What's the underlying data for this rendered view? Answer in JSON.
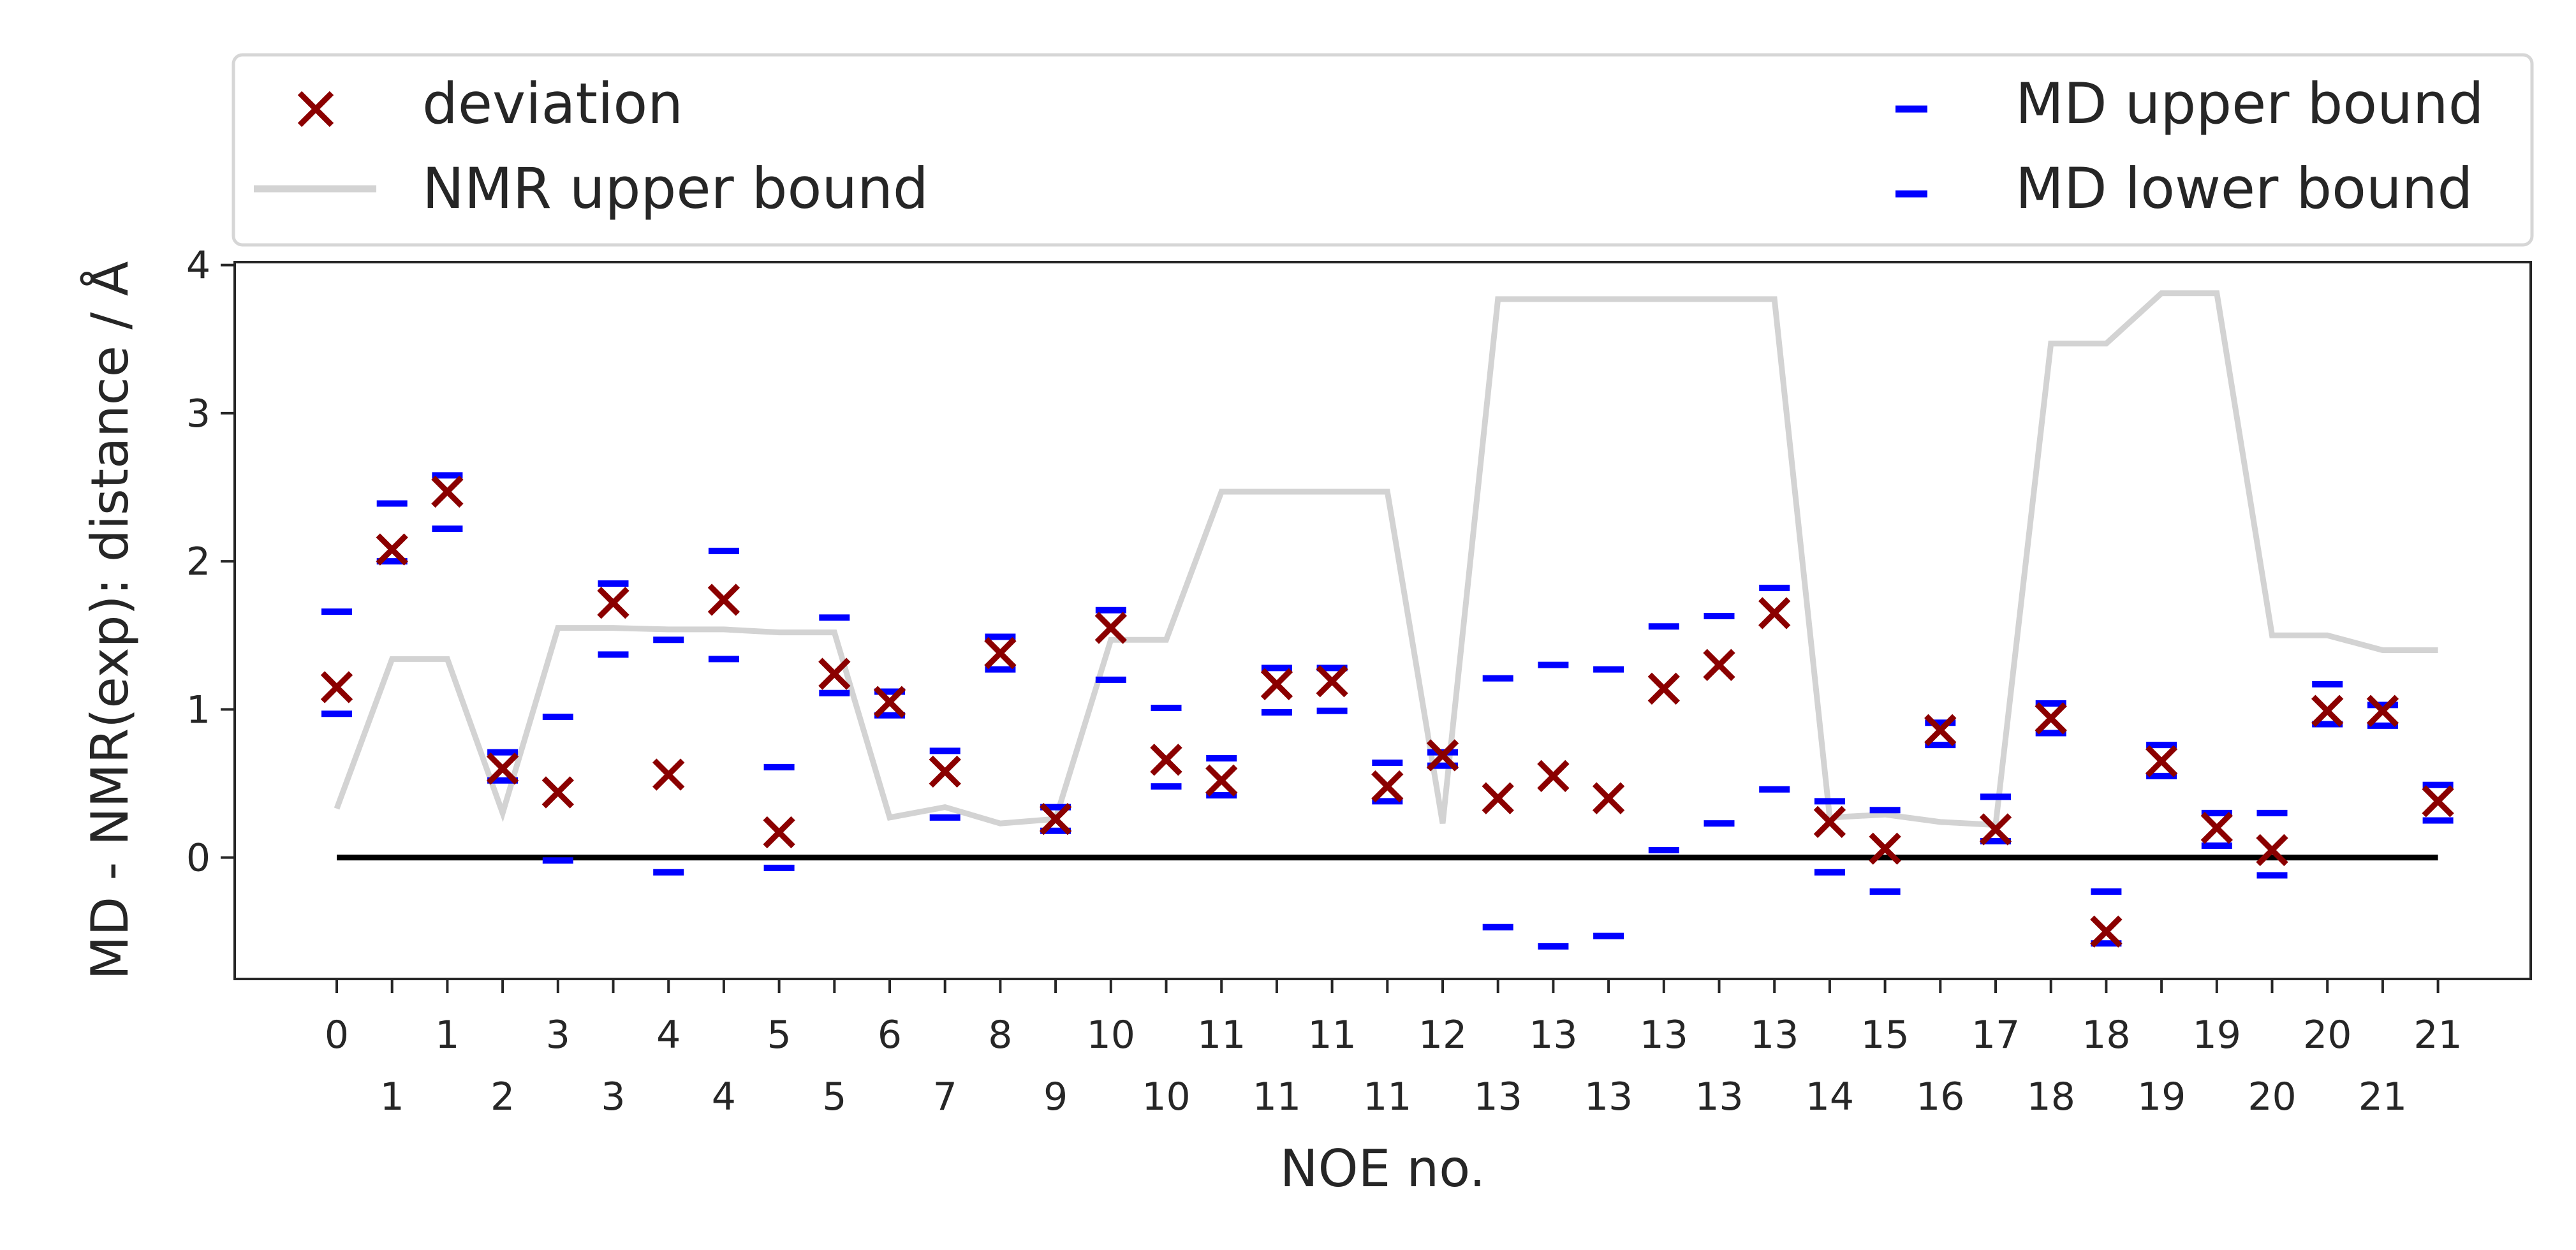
{
  "chart_data": {
    "type": "scatter",
    "xlabel": "NOE no.",
    "ylabel": "MD - NMR(exp): distance / Å",
    "ylim": [
      -0.82,
      4.02
    ],
    "yticks": [
      0,
      1,
      2,
      3,
      4
    ],
    "xtick_labels_top": [
      "0",
      "1",
      "3",
      "4",
      "5",
      "6",
      "8",
      "10",
      "11",
      "11",
      "12",
      "13",
      "13",
      "13",
      "15",
      "17",
      "18",
      "19",
      "20",
      "21"
    ],
    "xtick_labels_bottom": [
      "1",
      "2",
      "3",
      "4",
      "5",
      "7",
      "9",
      "10",
      "11",
      "11",
      "13",
      "13",
      "13",
      "14",
      "16",
      "18",
      "19",
      "20",
      "21"
    ],
    "zero_line": 0,
    "grid": false,
    "legend": {
      "placement": "top",
      "entries": [
        {
          "label": "deviation",
          "marker": "x",
          "color": "#8b0000"
        },
        {
          "label": "NMR upper bound",
          "marker": "line",
          "color": "#d3d3d3"
        },
        {
          "label": "MD upper bound",
          "marker": "dash",
          "color": "#0000ff"
        },
        {
          "label": "MD lower bound",
          "marker": "dash",
          "color": "#0000ff"
        }
      ]
    },
    "series": [
      {
        "name": "deviation",
        "values": [
          1.15,
          2.08,
          2.47,
          0.6,
          0.44,
          1.72,
          0.56,
          1.74,
          0.17,
          1.24,
          1.05,
          0.58,
          1.38,
          0.26,
          1.55,
          0.66,
          0.52,
          1.17,
          1.19,
          0.48,
          0.69,
          0.4,
          0.55,
          0.4,
          1.14,
          1.3,
          1.65,
          0.24,
          0.06,
          0.86,
          0.19,
          0.94,
          -0.5,
          0.65,
          0.2,
          0.05,
          0.99,
          0.99,
          0.38
        ]
      },
      {
        "name": "NMR upper bound",
        "values": [
          0.33,
          1.34,
          1.34,
          0.3,
          1.55,
          1.55,
          1.54,
          1.54,
          1.52,
          1.52,
          0.27,
          0.34,
          0.23,
          0.26,
          1.47,
          1.47,
          2.47,
          2.47,
          2.47,
          2.47,
          0.23,
          3.77,
          3.77,
          3.77,
          3.77,
          3.77,
          3.77,
          0.27,
          0.29,
          0.24,
          0.22,
          3.47,
          3.47,
          3.81,
          3.81,
          1.5,
          1.5,
          1.4,
          1.4
        ]
      },
      {
        "name": "MD upper bound",
        "values": [
          1.66,
          2.39,
          2.58,
          0.71,
          0.95,
          1.85,
          1.47,
          2.07,
          0.61,
          1.62,
          1.12,
          0.72,
          1.49,
          0.34,
          1.67,
          1.01,
          0.67,
          1.28,
          1.28,
          0.64,
          0.71,
          1.21,
          1.3,
          1.27,
          1.56,
          1.63,
          1.82,
          0.38,
          0.32,
          0.91,
          0.41,
          1.04,
          -0.23,
          0.76,
          0.3,
          0.3,
          1.17,
          1.03,
          0.49
        ]
      },
      {
        "name": "MD lower bound",
        "values": [
          0.97,
          2.0,
          2.22,
          0.52,
          -0.02,
          1.37,
          -0.1,
          1.34,
          -0.07,
          1.11,
          0.96,
          0.27,
          1.27,
          0.18,
          1.2,
          0.48,
          0.42,
          0.98,
          0.99,
          0.38,
          0.62,
          -0.47,
          -0.6,
          -0.53,
          0.05,
          0.23,
          0.46,
          -0.1,
          -0.23,
          0.76,
          0.11,
          0.84,
          -0.58,
          0.55,
          0.08,
          -0.12,
          0.9,
          0.89,
          0.25
        ]
      }
    ]
  }
}
